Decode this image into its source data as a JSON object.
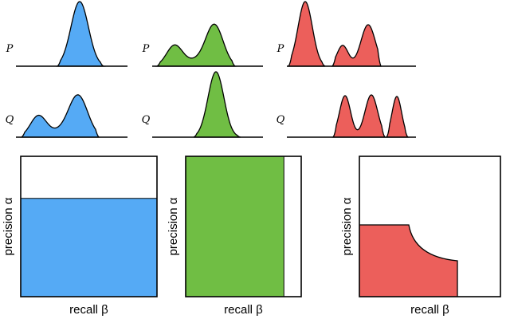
{
  "labels": {
    "p": "P",
    "q": "Q",
    "precision": "precision α",
    "recall": "recall β"
  },
  "colors": {
    "blue": "#55aaf5",
    "green": "#70be44",
    "red": "#ec5f5b"
  },
  "panels": [
    {
      "name": "blue",
      "precision_fill": 0.7,
      "recall_fill": 1.0
    },
    {
      "name": "green",
      "precision_fill": 1.0,
      "recall_fill": 0.85
    },
    {
      "name": "red",
      "shape": "curved-tradeoff"
    }
  ]
}
